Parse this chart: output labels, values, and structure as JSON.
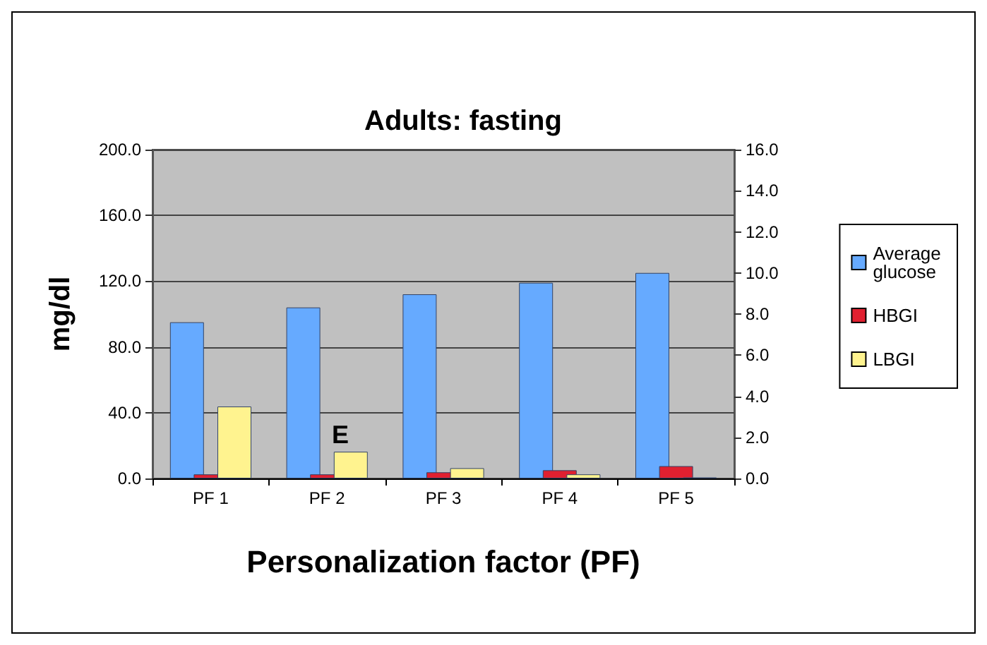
{
  "chart_data": {
    "type": "bar",
    "title": "Adults: fasting",
    "xlabel": "Personalization factor (PF)",
    "ylabel": "mg/dl",
    "categories": [
      "PF 1",
      "PF 2",
      "PF 3",
      "PF 4",
      "PF 5"
    ],
    "series": [
      {
        "name": "Average glucose",
        "color": "#66aaff",
        "values": [
          95,
          104,
          112,
          119,
          125
        ]
      },
      {
        "name": "HBGI",
        "color": "#e02030",
        "axis": "y2",
        "values": [
          0.2,
          0.2,
          0.3,
          0.4,
          0.6
        ]
      },
      {
        "name": "LBGI",
        "color": "#fff38f",
        "axis": "y2",
        "values": [
          3.5,
          1.3,
          0.5,
          0.2,
          0.05
        ]
      }
    ],
    "ylim": [
      0,
      200
    ],
    "yticks": [
      {
        "value": 0,
        "label": "0.0"
      },
      {
        "value": 40,
        "label": "40.0"
      },
      {
        "value": 80,
        "label": "80.0"
      },
      {
        "value": 120,
        "label": "120.0"
      },
      {
        "value": 160,
        "label": "160.0"
      },
      {
        "value": 200,
        "label": "200.0"
      }
    ],
    "y2lim": [
      0,
      16
    ],
    "y2ticks": [
      {
        "value": 0,
        "label": "0.0"
      },
      {
        "value": 2,
        "label": "2.0"
      },
      {
        "value": 4,
        "label": "4.0"
      },
      {
        "value": 6,
        "label": "6.0"
      },
      {
        "value": 8,
        "label": "8.0"
      },
      {
        "value": 10,
        "label": "10.0"
      },
      {
        "value": 12,
        "label": "12.0"
      },
      {
        "value": 14,
        "label": "14.0"
      },
      {
        "value": 16,
        "label": "16.0"
      }
    ],
    "annotations": [
      "E"
    ],
    "grid": "y",
    "legend": "right"
  }
}
